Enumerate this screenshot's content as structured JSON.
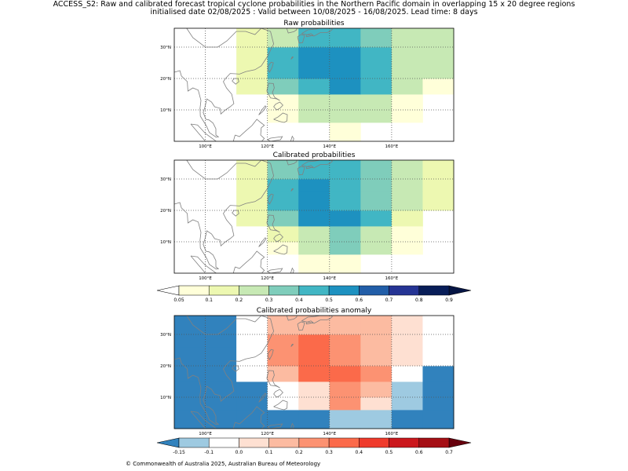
{
  "header": {
    "title_line1": "ACCESS_S2: Raw and calibrated forecast tropical cyclone probabilities in the Northern Pacific domain in overlapping 15 x 20 degree regions",
    "title_line2": "initialised date 02/08/2025 :  Valid between 10/08/2025 - 16/08/2025. Lead time: 8 days"
  },
  "footer": {
    "copyright": "© Commonwealth of Australia 2025, Australian Bureau of Meteorology"
  },
  "colors": {
    "prob_levels": [
      0.05,
      0.1,
      0.2,
      0.3,
      0.4,
      0.5,
      0.6,
      0.7,
      0.8,
      0.9
    ],
    "prob_colors": [
      "#ffffd9",
      "#edf8b1",
      "#c7e9b4",
      "#7fcdbb",
      "#41b6c4",
      "#1d91c0",
      "#225ea8",
      "#253494",
      "#081d58"
    ],
    "prob_under": "#ffffff",
    "prob_over": "#061544",
    "anom_levels": [
      -0.15,
      -0.1,
      0.0,
      0.1,
      0.2,
      0.3,
      0.4,
      0.5,
      0.6,
      0.7
    ],
    "anom_colors": [
      "#9ecae1",
      "#ffffff",
      "#fee0d2",
      "#fcbba1",
      "#fc9272",
      "#fb6a4a",
      "#ef3b2c",
      "#cb181d",
      "#a50f15"
    ],
    "anom_under": "#3182bd",
    "anom_over": "#67000d",
    "coast": "#808080",
    "grid": "#555555"
  },
  "axes": {
    "lon_range": [
      90,
      180
    ],
    "lat_range": [
      0,
      36
    ],
    "lon_ticks": [
      100,
      120,
      140,
      160
    ],
    "lon_tick_labels": [
      "100°E",
      "120°E",
      "140°E",
      "160°E"
    ],
    "lat_ticks": [
      10,
      20,
      30
    ],
    "lat_tick_labels": [
      "10°N",
      "20°N",
      "30°N"
    ],
    "grid": true
  },
  "colorbars": {
    "probability": {
      "tick_labels": [
        "0.05",
        "0.1",
        "0.2",
        "0.3",
        "0.4",
        "0.5",
        "0.6",
        "0.7",
        "0.8",
        "0.9"
      ]
    },
    "anomaly": {
      "tick_labels": [
        "-0.15",
        "-0.1",
        "0.0",
        "0.1",
        "0.2",
        "0.3",
        "0.4",
        "0.5",
        "0.6",
        "0.7"
      ]
    }
  },
  "chart_data": [
    {
      "type": "heatmap",
      "title": "Raw probabilities",
      "x_edges": [
        90,
        100,
        110,
        120,
        130,
        140,
        150,
        160,
        170,
        180
      ],
      "y_edges": [
        0,
        6,
        10,
        15,
        20,
        26,
        30,
        36
      ],
      "values": [
        [
          null,
          null,
          null,
          null,
          null,
          0.05,
          null,
          null,
          null
        ],
        [
          null,
          null,
          null,
          0.05,
          0.2,
          0.2,
          0.2,
          0.05,
          null
        ],
        [
          null,
          null,
          null,
          0.05,
          0.2,
          0.2,
          0.2,
          0.05,
          null
        ],
        [
          null,
          null,
          0.1,
          0.3,
          0.4,
          0.5,
          0.4,
          0.2,
          0.05
        ],
        [
          null,
          null,
          0.1,
          0.4,
          0.5,
          0.5,
          0.4,
          0.2,
          0.2
        ],
        [
          null,
          null,
          0.1,
          0.4,
          0.5,
          0.5,
          0.4,
          0.2,
          0.2
        ],
        [
          null,
          null,
          0.1,
          0.2,
          0.4,
          0.4,
          0.3,
          0.2,
          0.2
        ]
      ]
    },
    {
      "type": "heatmap",
      "title": "Calibrated probabilities",
      "x_edges": [
        90,
        100,
        110,
        120,
        130,
        140,
        150,
        160,
        170,
        180
      ],
      "y_edges": [
        0,
        6,
        10,
        15,
        20,
        26,
        30,
        36
      ],
      "values": [
        [
          null,
          null,
          null,
          null,
          0.05,
          0.05,
          null,
          null,
          null
        ],
        [
          null,
          null,
          null,
          0.05,
          0.2,
          0.3,
          0.2,
          0.05,
          null
        ],
        [
          null,
          null,
          null,
          0.1,
          0.2,
          0.3,
          0.2,
          0.05,
          null
        ],
        [
          null,
          null,
          0.1,
          0.3,
          0.5,
          0.5,
          0.4,
          0.1,
          null
        ],
        [
          null,
          null,
          0.1,
          0.4,
          0.5,
          0.4,
          0.3,
          0.2,
          0.1
        ],
        [
          null,
          null,
          0.1,
          0.4,
          0.5,
          0.4,
          0.3,
          0.2,
          0.1
        ],
        [
          null,
          null,
          0.1,
          0.3,
          0.4,
          0.4,
          0.3,
          0.2,
          0.1
        ]
      ]
    },
    {
      "type": "heatmap",
      "title": "Calibrated probabilities anomaly",
      "x_edges": [
        90,
        100,
        110,
        120,
        130,
        140,
        150,
        160,
        170,
        180
      ],
      "y_edges": [
        0,
        6,
        10,
        15,
        20,
        26,
        30,
        36
      ],
      "values": [
        [
          -0.2,
          -0.2,
          -0.2,
          -0.2,
          -0.2,
          -0.12,
          -0.12,
          -0.2,
          -0.2
        ],
        [
          -0.2,
          -0.2,
          -0.2,
          -0.05,
          0.05,
          0.2,
          0.05,
          -0.12,
          -0.2
        ],
        [
          -0.2,
          -0.2,
          -0.2,
          -0.05,
          0.05,
          0.2,
          0.1,
          -0.12,
          -0.2
        ],
        [
          -0.2,
          -0.2,
          -0.05,
          0.1,
          0.3,
          0.3,
          0.2,
          -0.05,
          -0.2
        ],
        [
          -0.2,
          -0.2,
          -0.05,
          0.2,
          0.3,
          0.2,
          0.1,
          0.05,
          -0.05
        ],
        [
          -0.2,
          -0.2,
          -0.05,
          0.2,
          0.3,
          0.2,
          0.1,
          0.05,
          -0.05
        ],
        [
          -0.2,
          -0.2,
          -0.05,
          0.1,
          0.1,
          0.1,
          0.1,
          0.05,
          -0.05
        ]
      ]
    }
  ]
}
